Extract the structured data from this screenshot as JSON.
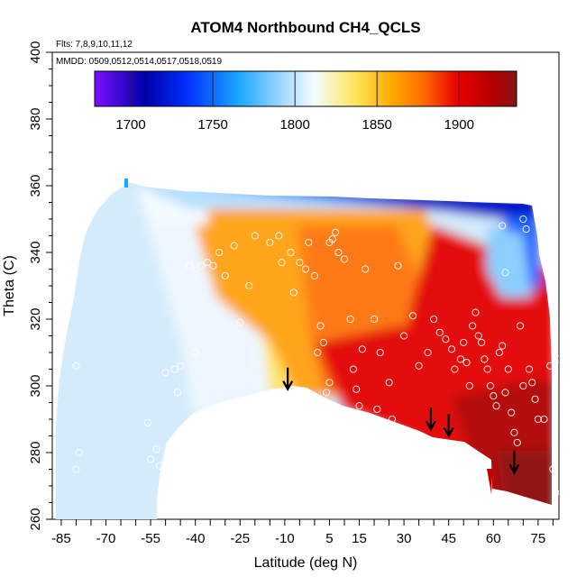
{
  "chart_data": {
    "type": "heatmap",
    "title": "ATOM4 Northbound CH4_QCLS",
    "annotations": {
      "flights": "Flts: 7,8,9,10,11,12",
      "dates": "MMDD: 0509,0512,0514,0517,0518,0519"
    },
    "xlabel": "Latitude (deg N)",
    "ylabel": "Theta (C)",
    "xlim": [
      -88,
      82
    ],
    "ylim": [
      260,
      400
    ],
    "x_ticks": [
      -85,
      -70,
      -55,
      -40,
      -25,
      -10,
      5,
      15,
      30,
      45,
      60,
      75
    ],
    "x_tick_labels": [
      "-85",
      "-70",
      "-55",
      "-40",
      "-25",
      "-10",
      "5",
      "15",
      "30",
      "45",
      "60",
      "75"
    ],
    "y_ticks": [
      260,
      280,
      300,
      320,
      340,
      360,
      380,
      400
    ],
    "y_tick_labels": [
      "260",
      "280",
      "300",
      "320",
      "340",
      "360",
      "380",
      "400"
    ],
    "colorbar": {
      "range": [
        1678,
        1935
      ],
      "ticks": [
        1700,
        1750,
        1800,
        1850,
        1900
      ],
      "tick_labels": [
        "1700",
        "1750",
        "1800",
        "1850",
        "1900"
      ],
      "colors": [
        "#7a10ff",
        "#0000a8",
        "#0030ff",
        "#1aa6ff",
        "#a6dcff",
        "#f4fbff",
        "#ffe45a",
        "#ffae00",
        "#ff6a00",
        "#e80000",
        "#b80000",
        "#8a1414"
      ]
    },
    "grid": false,
    "field_description": "CH4 mixing ratio (ppb) interpolated over latitude and potential temperature",
    "observation_points": [
      [
        -85,
        330
      ],
      [
        -80,
        306
      ],
      [
        -79,
        280
      ],
      [
        -80,
        275
      ],
      [
        -56,
        289
      ],
      [
        -55,
        278
      ],
      [
        -53,
        281
      ],
      [
        -52,
        276
      ],
      [
        -50,
        304
      ],
      [
        -47,
        305
      ],
      [
        -45,
        306
      ],
      [
        -46,
        298
      ],
      [
        -42,
        336
      ],
      [
        -40,
        310
      ],
      [
        -38,
        336
      ],
      [
        -36,
        337
      ],
      [
        -34,
        336
      ],
      [
        -32,
        340
      ],
      [
        -30,
        333
      ],
      [
        -27,
        342
      ],
      [
        -25,
        319
      ],
      [
        -22,
        330
      ],
      [
        -20,
        345
      ],
      [
        -15,
        343
      ],
      [
        -12,
        345
      ],
      [
        -11,
        337
      ],
      [
        -8,
        340
      ],
      [
        -7,
        328
      ],
      [
        -5,
        337
      ],
      [
        -3,
        335
      ],
      [
        -2,
        343
      ],
      [
        0,
        333
      ],
      [
        1,
        310
      ],
      [
        2,
        318
      ],
      [
        3,
        313
      ],
      [
        5,
        301
      ],
      [
        4,
        298
      ],
      [
        5,
        343
      ],
      [
        6,
        344
      ],
      [
        7,
        346
      ],
      [
        8,
        340
      ],
      [
        10,
        338
      ],
      [
        12,
        320
      ],
      [
        13,
        305
      ],
      [
        14,
        299
      ],
      [
        15,
        294
      ],
      [
        16,
        311
      ],
      [
        17,
        335
      ],
      [
        20,
        320
      ],
      [
        21,
        293
      ],
      [
        22,
        310
      ],
      [
        25,
        301
      ],
      [
        26,
        290
      ],
      [
        28,
        336
      ],
      [
        30,
        315
      ],
      [
        33,
        321
      ],
      [
        35,
        306
      ],
      [
        38,
        310
      ],
      [
        40,
        320
      ],
      [
        42,
        316
      ],
      [
        44,
        314
      ],
      [
        46,
        311
      ],
      [
        47,
        305
      ],
      [
        49,
        308
      ],
      [
        50,
        313
      ],
      [
        51,
        307
      ],
      [
        52,
        300
      ],
      [
        53,
        318
      ],
      [
        54,
        322
      ],
      [
        55,
        315
      ],
      [
        56,
        313
      ],
      [
        57,
        308
      ],
      [
        58,
        305
      ],
      [
        59,
        300
      ],
      [
        60,
        297
      ],
      [
        61,
        294
      ],
      [
        62,
        310
      ],
      [
        63,
        312
      ],
      [
        64,
        298
      ],
      [
        65,
        305
      ],
      [
        66,
        292
      ],
      [
        67,
        286
      ],
      [
        68,
        283
      ],
      [
        69,
        318
      ],
      [
        70,
        300
      ],
      [
        72,
        305
      ],
      [
        73,
        301
      ],
      [
        74,
        296
      ],
      [
        75,
        290
      ],
      [
        77,
        290
      ],
      [
        79,
        306
      ],
      [
        80,
        275
      ],
      [
        81,
        268
      ],
      [
        82,
        308
      ],
      [
        63,
        348
      ],
      [
        70,
        350
      ],
      [
        71,
        347
      ],
      [
        64,
        334
      ]
    ],
    "arrows": [
      {
        "lat": -9,
        "theta": 299
      },
      {
        "lat": 39,
        "theta": 287
      },
      {
        "lat": 45,
        "theta": 285
      },
      {
        "lat": 67,
        "theta": 274
      }
    ]
  }
}
